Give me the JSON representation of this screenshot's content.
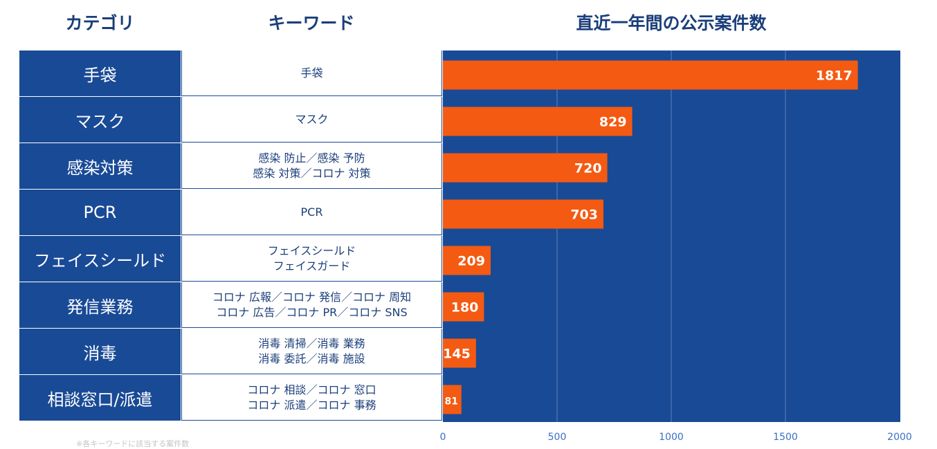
{
  "headers": {
    "category": "カテゴリ",
    "keyword": "キーワード",
    "count": "直近一年間の公示案件数"
  },
  "rows": [
    {
      "category": "手袋",
      "keywords": [
        "手袋"
      ]
    },
    {
      "category": "マスク",
      "keywords": [
        "マスク"
      ]
    },
    {
      "category": "感染対策",
      "keywords": [
        "感染 防止／感染 予防",
        "感染 対策／コロナ 対策"
      ]
    },
    {
      "category": "PCR",
      "keywords": [
        "PCR"
      ]
    },
    {
      "category": "フェイスシールド",
      "keywords": [
        "フェイスシールド",
        "フェイスガード"
      ]
    },
    {
      "category": "発信業務",
      "keywords": [
        "コロナ 広報／コロナ 発信／コロナ 周知",
        "コロナ 広告／コロナ PR／コロナ SNS"
      ]
    },
    {
      "category": "消毒",
      "keywords": [
        "消毒 清掃／消毒 業務",
        "消毒 委託／消毒 施設"
      ]
    },
    {
      "category": "相談窓口/派遣",
      "keywords": [
        "コロナ 相談／コロナ 窓口",
        "コロナ 派遣／コロナ 事務"
      ]
    }
  ],
  "chart_data": {
    "type": "bar",
    "orientation": "horizontal",
    "title": "直近一年間の公示案件数",
    "categories": [
      "手袋",
      "マスク",
      "感染対策",
      "PCR",
      "フェイスシールド",
      "発信業務",
      "消毒",
      "相談窓口/派遣"
    ],
    "values": [
      1817,
      829,
      720,
      703,
      209,
      180,
      145,
      81
    ],
    "value_labels": [
      "1817",
      "829",
      "720",
      "703",
      "209",
      "180",
      "145",
      "81"
    ],
    "xlim": [
      0,
      2000
    ],
    "xticks": [
      0,
      500,
      1000,
      1500,
      2000
    ],
    "grid": true,
    "colors": {
      "bar": "#f45a12",
      "background": "#194a96",
      "grid": "#5f82bc",
      "label": "#ffffff"
    }
  },
  "footnote": "※各キーワードに該当する案件数"
}
